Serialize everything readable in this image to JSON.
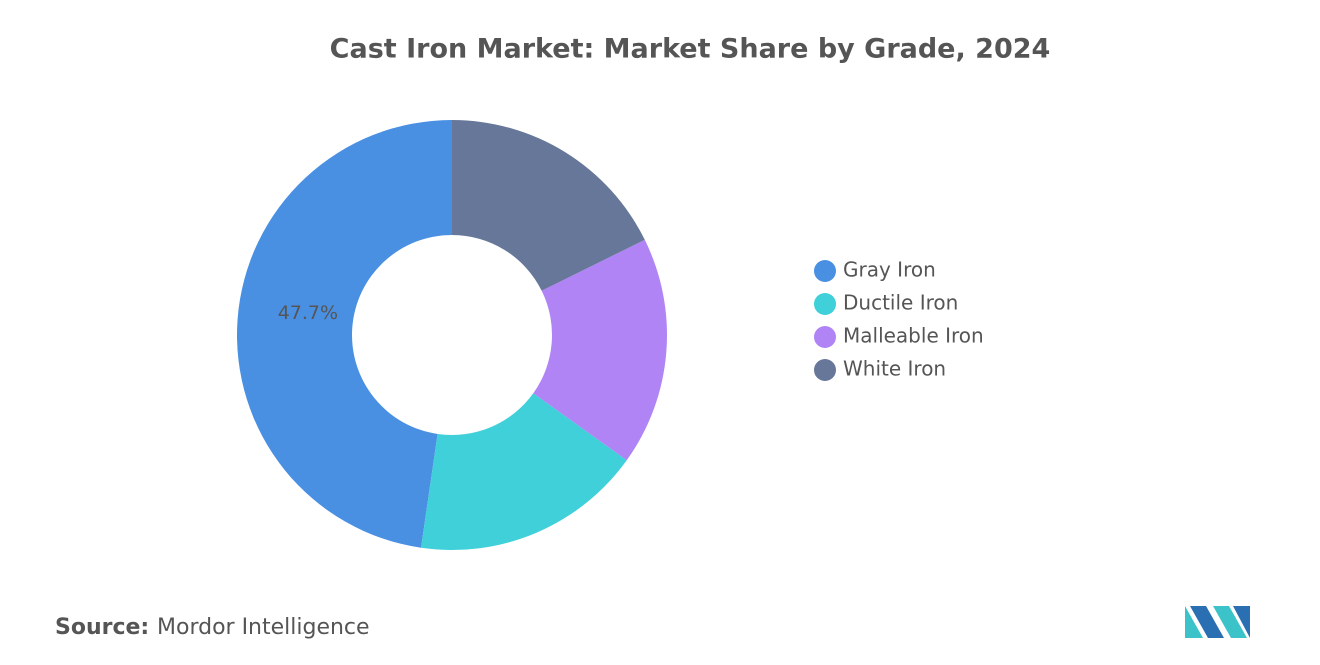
{
  "chart_data": {
    "type": "pie",
    "title": "Cast Iron Market: Market Share by Grade, 2024",
    "categories": [
      "Gray Iron",
      "Ductile Iron",
      "Malleable Iron",
      "White Iron"
    ],
    "values": [
      47.7,
      17.4,
      17.2,
      17.7
    ],
    "value_labels": [
      "47.7%",
      null,
      null,
      null
    ],
    "colors": [
      "#4a90e2",
      "#3fd0d9",
      "#b084f5",
      "#667799"
    ],
    "donut": true,
    "legend": "right"
  },
  "source": {
    "label": "Source:",
    "text": "Mordor Intelligence"
  }
}
